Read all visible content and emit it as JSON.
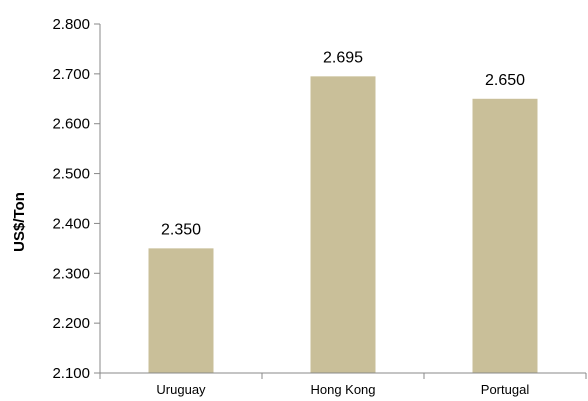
{
  "chart_data": {
    "type": "bar",
    "title": "",
    "xlabel": "",
    "ylabel": "US$/Ton",
    "categories": [
      "Uruguay",
      "Hong Kong",
      "Portugal"
    ],
    "values": [
      2.35,
      2.695,
      2.65
    ],
    "value_labels": [
      "2.350",
      "2.695",
      "2.650"
    ],
    "ylim": [
      2.1,
      2.8
    ],
    "yticks": [
      2.1,
      2.2,
      2.3,
      2.4,
      2.5,
      2.6,
      2.7,
      2.8
    ],
    "ytick_labels": [
      "2.100",
      "2.200",
      "2.300",
      "2.400",
      "2.500",
      "2.600",
      "2.700",
      "2.800"
    ],
    "grid": false,
    "legend": "none",
    "bar_color": "#c9bf99"
  }
}
